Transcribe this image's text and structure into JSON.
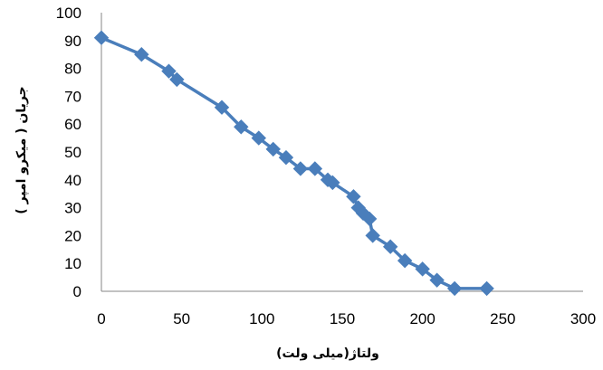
{
  "chart_data": {
    "type": "line",
    "title": "",
    "xlabel": "ولتاژ(میلی ولت)",
    "ylabel": "جریان ( میکرو امپر )",
    "xlim": [
      0,
      300
    ],
    "ylim": [
      0,
      100
    ],
    "x_ticks": [
      "0",
      "50",
      "100",
      "150",
      "200",
      "250",
      "300"
    ],
    "y_ticks": [
      "0",
      "10",
      "20",
      "30",
      "40",
      "50",
      "60",
      "70",
      "80",
      "90",
      "100"
    ],
    "grid": false,
    "legend": "none",
    "series": [
      {
        "color": "#4a7ebb",
        "marker": "diamond",
        "points": [
          [
            0,
            91
          ],
          [
            25,
            85
          ],
          [
            42,
            79
          ],
          [
            47,
            76
          ],
          [
            75,
            66
          ],
          [
            87,
            59
          ],
          [
            98,
            55
          ],
          [
            107,
            51
          ],
          [
            115,
            48
          ],
          [
            124,
            44
          ],
          [
            133,
            44
          ],
          [
            141,
            40
          ],
          [
            144,
            39
          ],
          [
            157,
            34
          ],
          [
            160,
            30
          ],
          [
            163,
            28
          ],
          [
            167,
            26
          ],
          [
            169,
            20
          ],
          [
            180,
            16
          ],
          [
            189,
            11
          ],
          [
            200,
            8
          ],
          [
            209,
            4
          ],
          [
            220,
            1
          ],
          [
            240,
            1
          ]
        ]
      }
    ]
  }
}
